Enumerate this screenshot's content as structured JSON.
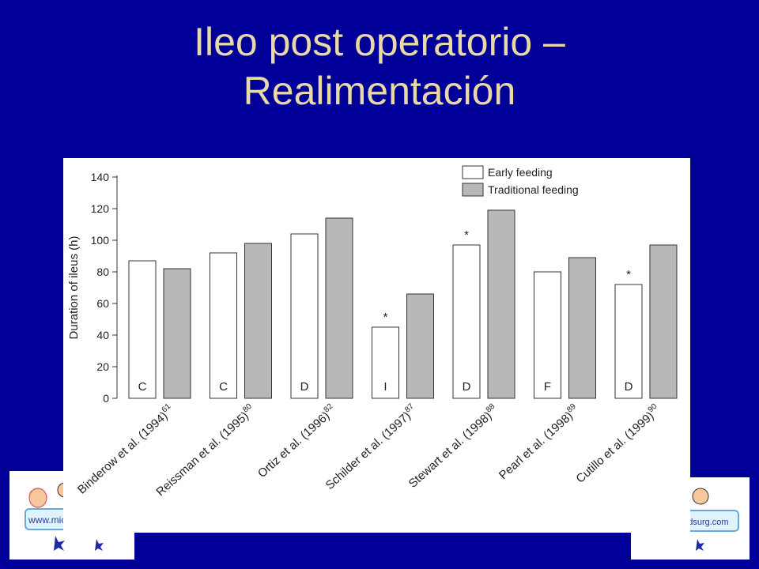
{
  "slide": {
    "title_line1": "Ileo post operatorio –",
    "title_line2": "Realimentación"
  },
  "logos": {
    "left_text": "www.mici",
    "right_text": "eedsurg.com"
  },
  "colors": {
    "background": "#000099",
    "title": "#e8d9a6",
    "early_fill": "#ffffff",
    "traditional_fill": "#b8b8b8"
  },
  "chart_data": {
    "type": "bar",
    "title": "",
    "xlabel": "",
    "ylabel": "Duration of ileus (h)",
    "ylim": [
      0,
      140
    ],
    "yticks": [
      0,
      20,
      40,
      60,
      80,
      100,
      120,
      140
    ],
    "legend_position": "top-right",
    "categories": [
      {
        "name": "Binderow et al. (1994)",
        "ref": "61",
        "code": "C",
        "star": false
      },
      {
        "name": "Reissman et al. (1995)",
        "ref": "80",
        "code": "C",
        "star": false
      },
      {
        "name": "Ortiz et al. (1996)",
        "ref": "82",
        "code": "D",
        "star": false
      },
      {
        "name": "Schilder et al. (1997)",
        "ref": "87",
        "code": "I",
        "star": true
      },
      {
        "name": "Stewart et al. (1998)",
        "ref": "88",
        "code": "D",
        "star": true
      },
      {
        "name": "Pearl et al. (1998)",
        "ref": "89",
        "code": "F",
        "star": false
      },
      {
        "name": "Cutillo et al. (1999)",
        "ref": "90",
        "code": "D",
        "star": true
      }
    ],
    "series": [
      {
        "name": "Early feeding",
        "values": [
          87,
          92,
          104,
          45,
          97,
          80,
          72
        ]
      },
      {
        "name": "Traditional feeding",
        "values": [
          82,
          98,
          114,
          66,
          119,
          89,
          97
        ]
      }
    ],
    "star_symbol": "*"
  }
}
